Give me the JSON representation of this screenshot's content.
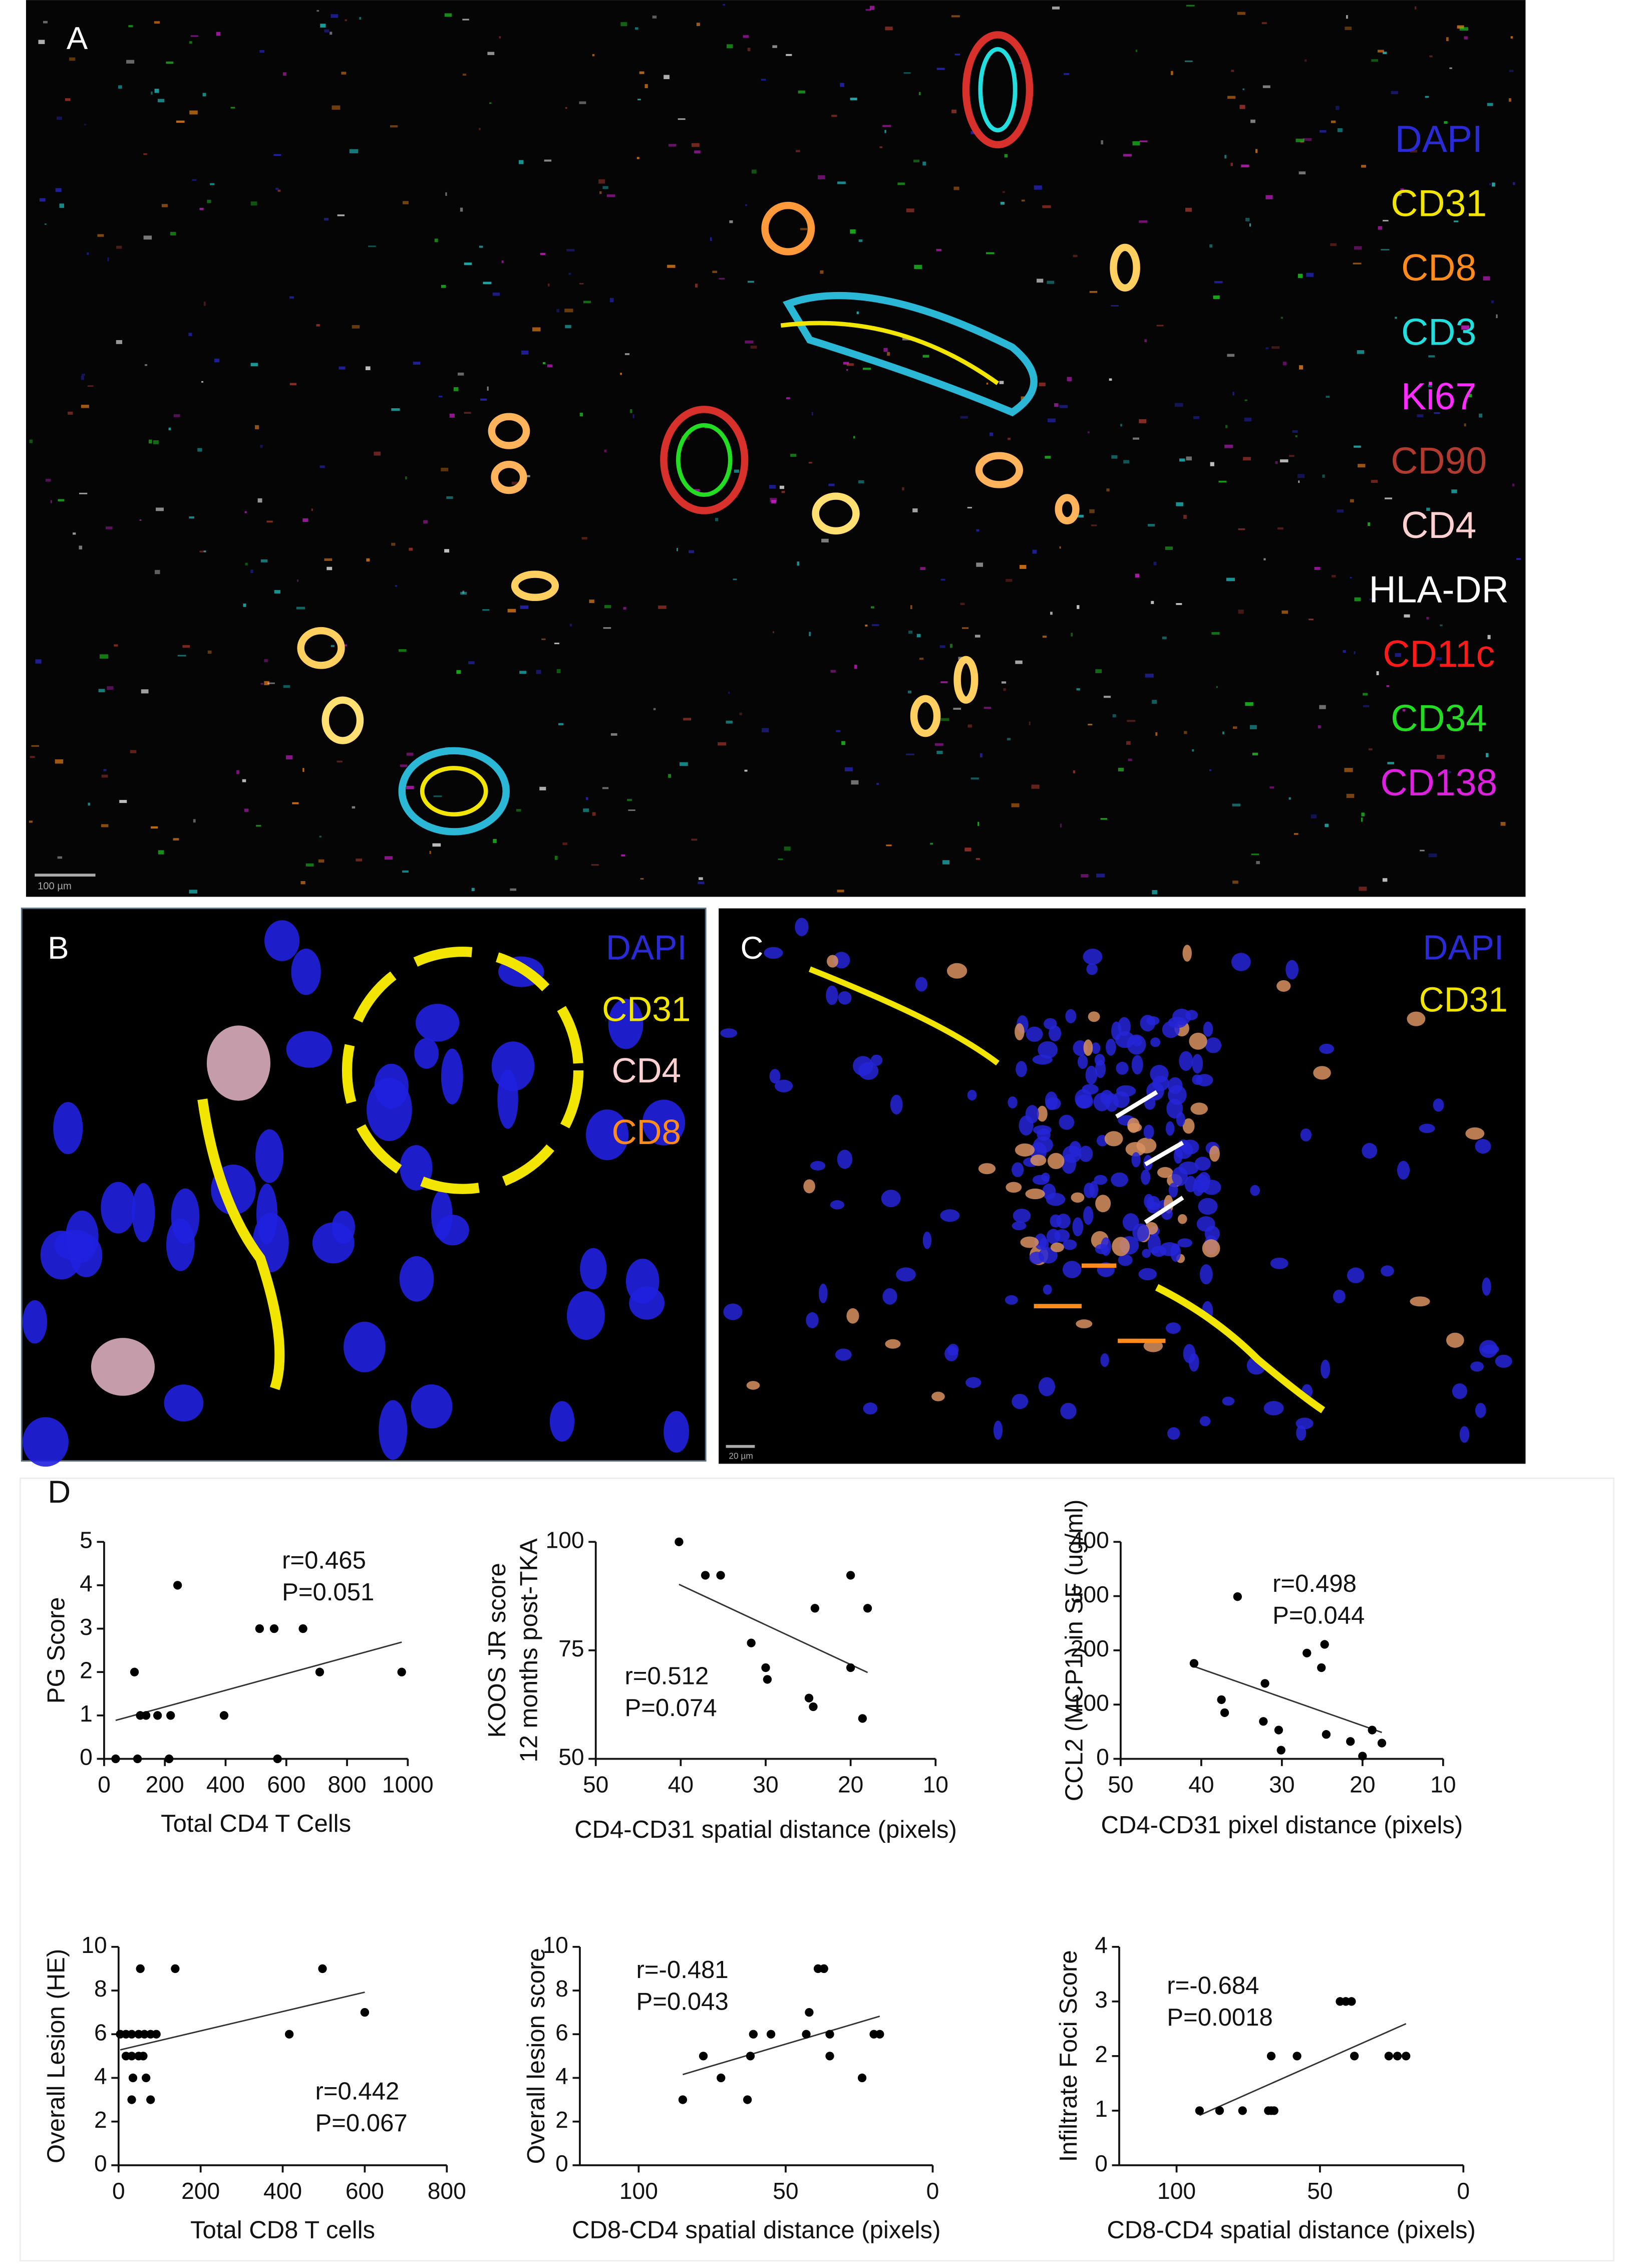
{
  "panels": {
    "A": {
      "label": "A",
      "scale_bar": "100 µm",
      "legend": [
        {
          "text": "DAPI",
          "color": "#2b2bd6"
        },
        {
          "text": "CD31",
          "color": "#f2e600"
        },
        {
          "text": "CD8",
          "color": "#ff8c1a"
        },
        {
          "text": "CD3",
          "color": "#22dede"
        },
        {
          "text": "Ki67",
          "color": "#ff2bff"
        },
        {
          "text": "CD90",
          "color": "#b23a2e"
        },
        {
          "text": "CD4",
          "color": "#ffd0d0"
        },
        {
          "text": "HLA-DR",
          "color": "#ffffff"
        },
        {
          "text": "CD11c",
          "color": "#ff1a1a"
        },
        {
          "text": "CD34",
          "color": "#22dd22"
        },
        {
          "text": "CD138",
          "color": "#e020e0"
        }
      ]
    },
    "B": {
      "label": "B",
      "legend": [
        {
          "text": "DAPI",
          "color": "#2b2bd6"
        },
        {
          "text": "CD31",
          "color": "#f2e600"
        },
        {
          "text": "CD4",
          "color": "#ffd0d0"
        },
        {
          "text": "CD8",
          "color": "#ff8c1a"
        }
      ]
    },
    "C": {
      "label": "C",
      "scale_bar": "20 µm",
      "legend": [
        {
          "text": "DAPI",
          "color": "#2b2bd6"
        },
        {
          "text": "CD31",
          "color": "#f2e600"
        }
      ]
    },
    "D": {
      "label": "D"
    }
  },
  "chart_data": [
    {
      "type": "scatter",
      "xlabel": "Total CD4 T Cells",
      "ylabel": [
        "PG Score"
      ],
      "x": [
        38,
        110,
        214,
        571,
        119,
        138,
        176,
        219,
        395,
        100,
        710,
        980,
        512,
        560,
        655,
        242
      ],
      "series": [
        {
          "color": "#000000",
          "values": [
            0,
            0,
            0,
            0,
            1,
            1,
            1,
            1,
            1,
            2,
            2,
            2,
            3,
            3,
            3,
            4
          ]
        }
      ],
      "xlim": [
        0,
        1000
      ],
      "ylim": [
        0,
        5
      ],
      "xticks": [
        0,
        200,
        400,
        600,
        800,
        1000
      ],
      "yticks": [
        0,
        1,
        2,
        3,
        4,
        5
      ],
      "annotations": [
        "r=0.465",
        "P=0.051"
      ],
      "fit_line": true
    },
    {
      "type": "scatter",
      "xlabel": "CD4-CD31 spatial distance (pixels)",
      "ylabel": [
        "KOOS JR score",
        "12 months post-TKA"
      ],
      "x": [
        40.2,
        37.1,
        35.3,
        24.2,
        31.7,
        30,
        29.8,
        24.9,
        24.4,
        20,
        18,
        20,
        18.6
      ],
      "series": [
        {
          "color": "#000000",
          "values": [
            100,
            92.3,
            92.3,
            84.7,
            76.7,
            71,
            68.3,
            64,
            62,
            92.3,
            84.7,
            71,
            59.3
          ]
        }
      ],
      "xlim": [
        50,
        10
      ],
      "ylim": [
        50,
        100
      ],
      "xticks": [
        50,
        40,
        30,
        20,
        10
      ],
      "yticks": [
        50,
        75,
        100
      ],
      "annotations": [
        "r=0.512",
        "P=0.074"
      ],
      "fit_line": true
    },
    {
      "type": "scatter",
      "xlabel": "CD4-CD31 pixel distance (pixels)",
      "ylabel": [
        "CCL2 (MCP1)  in SF (ug/ml)"
      ],
      "x": [
        40.9,
        37.5,
        37.1,
        35.5,
        32.1,
        32.3,
        26.9,
        30.4,
        30.1,
        24.7,
        25.1,
        24.5,
        21.5,
        18.8,
        20,
        17.6
      ],
      "series": [
        {
          "color": "#000000",
          "values": [
            176,
            109,
            85,
            299,
            139,
            69,
            195,
            53,
            16,
            211,
            168,
            45,
            32,
            53,
            5,
            29
          ]
        }
      ],
      "xlim": [
        50,
        10
      ],
      "ylim": [
        0,
        400
      ],
      "xticks": [
        50,
        40,
        30,
        20,
        10
      ],
      "yticks": [
        0,
        100,
        200,
        300,
        400
      ],
      "annotations": [
        "r=0.498",
        "P=0.044"
      ],
      "fit_line": true
    },
    {
      "type": "scatter",
      "xlabel": "Total CD8 T cells",
      "ylabel": [
        "Overall Lesion (HE)"
      ],
      "x": [
        53,
        138,
        497,
        600,
        4,
        18,
        32,
        49,
        63,
        78,
        92,
        416,
        18,
        32,
        49,
        60,
        35,
        67,
        32,
        78
      ],
      "series": [
        {
          "color": "#000000",
          "values": [
            9,
            9,
            9,
            7,
            6,
            6,
            6,
            6,
            6,
            6,
            6,
            6,
            5,
            5,
            5,
            5,
            4,
            4,
            3,
            3
          ]
        }
      ],
      "xlim": [
        0,
        800
      ],
      "ylim": [
        0,
        10
      ],
      "xticks": [
        0,
        200,
        400,
        600,
        800
      ],
      "yticks": [
        0,
        2,
        4,
        6,
        8,
        10
      ],
      "annotations": [
        "r=0.442",
        "P=0.067"
      ],
      "fit_line": true
    },
    {
      "type": "scatter",
      "xlabel": "CD8-CD4 spatial distance (pixels)",
      "ylabel": [
        "Overall lesion score"
      ],
      "x": [
        85,
        78,
        72,
        63,
        62,
        61,
        55,
        43,
        42,
        39,
        37,
        35,
        35,
        24,
        20,
        18
      ],
      "series": [
        {
          "color": "#000000",
          "values": [
            3,
            5,
            4,
            3,
            5,
            6,
            6,
            6,
            7,
            9,
            9,
            5,
            6,
            4,
            6,
            6
          ]
        }
      ],
      "xlim": [
        120,
        0
      ],
      "ylim": [
        0,
        10
      ],
      "xticks": [
        100,
        50,
        0
      ],
      "yticks": [
        0,
        2,
        4,
        6,
        8,
        10
      ],
      "annotations": [
        "r=-0.481",
        "P=0.043"
      ],
      "fit_line": true
    },
    {
      "type": "scatter",
      "xlabel": "CD8-CD4 spatial distance (pixels)",
      "ylabel": [
        "Infiltrate Foci Score"
      ],
      "x": [
        92,
        85,
        77,
        68,
        67,
        66,
        67,
        58,
        38,
        26,
        23,
        20,
        43,
        41,
        39
      ],
      "series": [
        {
          "color": "#000000",
          "values": [
            1,
            1,
            1,
            1,
            1,
            1,
            2,
            2,
            2,
            2,
            2,
            2,
            3,
            3,
            3
          ]
        }
      ],
      "xlim": [
        120,
        0
      ],
      "ylim": [
        0,
        4
      ],
      "xticks": [
        100,
        50,
        0
      ],
      "yticks": [
        0,
        1,
        2,
        3,
        4
      ],
      "annotations": [
        "r=-0.684",
        "P=0.0018"
      ],
      "fit_line": true
    }
  ]
}
